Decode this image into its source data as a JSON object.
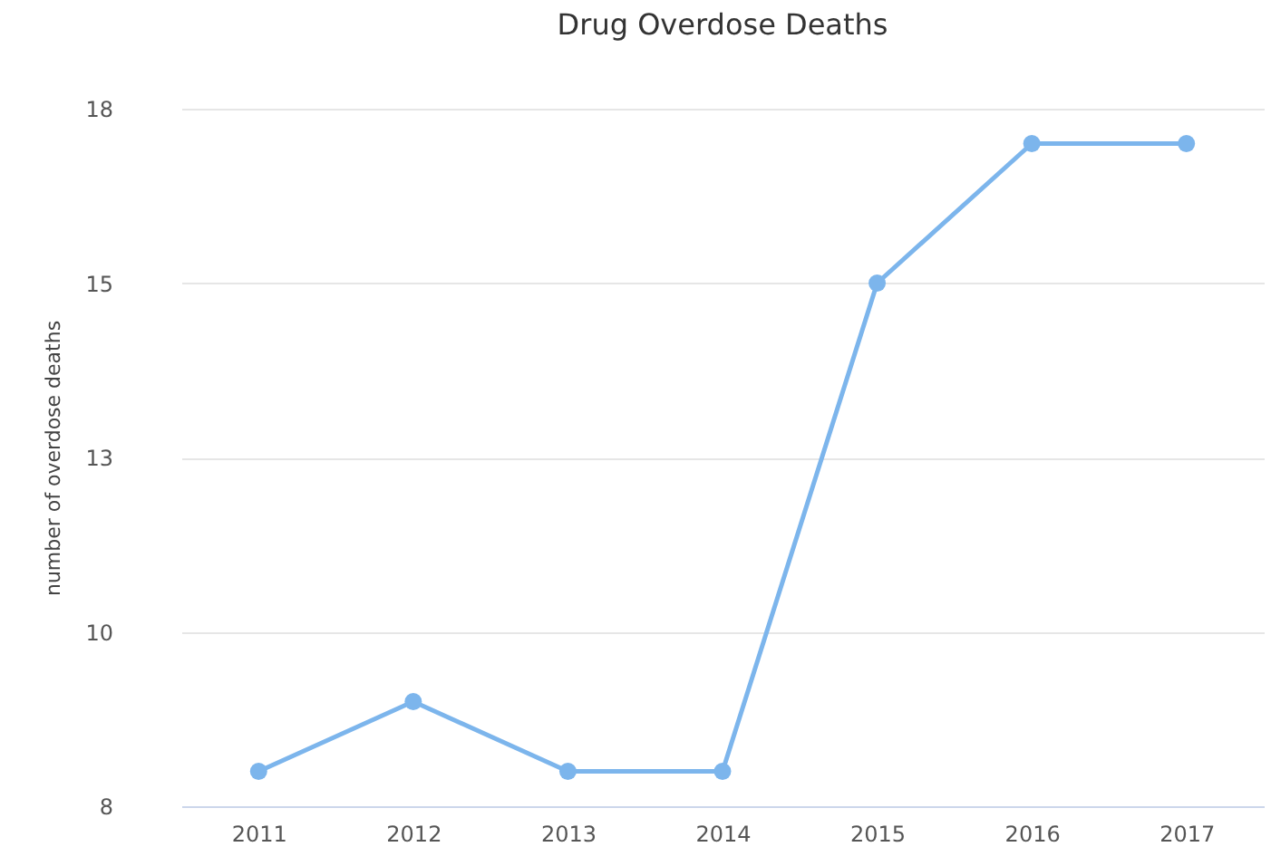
{
  "chart_data": {
    "type": "line",
    "title": "Drug Overdose Deaths",
    "ylabel": "number of overdose deaths",
    "categories": [
      "2011",
      "2012",
      "2013",
      "2014",
      "2015",
      "2016",
      "2017"
    ],
    "series": [
      {
        "color": "#7cb5ec",
        "values": [
          8,
          9,
          8,
          8,
          15,
          17,
          17
        ]
      }
    ],
    "ylim": [
      7.5,
      17.5
    ],
    "yticks": [
      {
        "value": 7.5,
        "label": "8"
      },
      {
        "value": 10,
        "label": "10"
      },
      {
        "value": 12.5,
        "label": "13"
      },
      {
        "value": 15,
        "label": "15"
      },
      {
        "value": 17.5,
        "label": "18"
      }
    ],
    "grid": "y",
    "marker": "circle",
    "line_style": "solid"
  }
}
